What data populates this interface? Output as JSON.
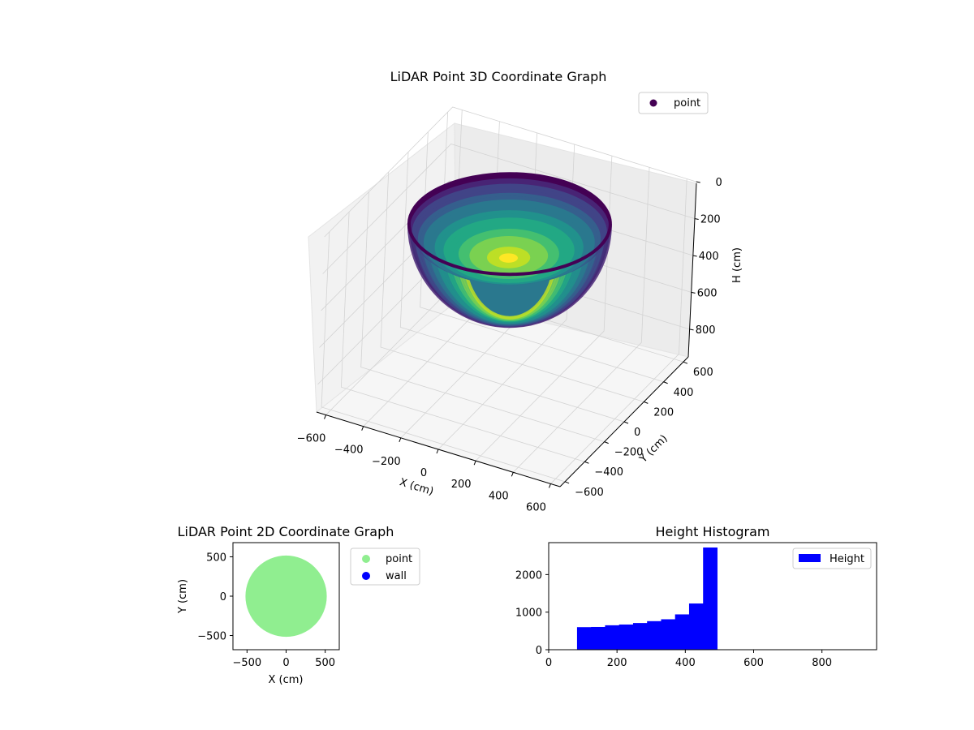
{
  "chart_data": [
    {
      "type": "scatter",
      "projection": "3d",
      "title": "LiDAR Point 3D Coordinate Graph",
      "xlabel": "X (cm)",
      "ylabel": "Y (cm)",
      "zlabel": "H (cm)",
      "xticks": [
        -600,
        -400,
        -200,
        0,
        200,
        400,
        600
      ],
      "yticks": [
        -600,
        -400,
        -200,
        0,
        200,
        400,
        600
      ],
      "zticks": [
        0,
        200,
        400,
        600,
        800
      ],
      "xlim": [
        -650,
        650
      ],
      "ylim": [
        -650,
        650
      ],
      "zlim": [
        950,
        0
      ],
      "z_axis_inverted": true,
      "grid": true,
      "colormap": "viridis",
      "legend": {
        "entries": [
          "point"
        ],
        "placement": "top-right"
      },
      "series": [
        {
          "name": "point",
          "shape": "hemispherical bowl",
          "center": [
            0,
            0
          ],
          "rim_radius": 520,
          "rim_height": 80,
          "bottom_height": 490
        }
      ]
    },
    {
      "type": "scatter",
      "title": "LiDAR Point 2D Coordinate Graph",
      "xlabel": "X (cm)",
      "ylabel": "Y (cm)",
      "xticks": [
        -500,
        0,
        500
      ],
      "yticks": [
        500,
        0,
        -500
      ],
      "xlim": [
        -680,
        680
      ],
      "ylim": [
        -680,
        680
      ],
      "grid": false,
      "legend": {
        "entries": [
          "point",
          "wall"
        ],
        "placement": "outside-right"
      },
      "series": [
        {
          "name": "point",
          "color": "#90ee90",
          "shape": "filled disk",
          "center": [
            0,
            0
          ],
          "radius": 520
        },
        {
          "name": "wall",
          "color": "#0000ff",
          "points": []
        }
      ]
    },
    {
      "type": "bar",
      "subtype": "histogram",
      "title": "Height Histogram",
      "xticks": [
        0,
        200,
        400,
        600,
        800
      ],
      "yticks": [
        0,
        1000,
        2000
      ],
      "xlim": [
        0,
        960
      ],
      "ylim": [
        0,
        2850
      ],
      "grid": false,
      "legend": {
        "entries": [
          "Height"
        ],
        "placement": "top-right"
      },
      "series": [
        {
          "name": "Height",
          "color": "#0000ff",
          "bin_edges": [
            83,
            124,
            165,
            206,
            247,
            288,
            329,
            370,
            411,
            452,
            493
          ],
          "values": [
            600,
            605,
            650,
            670,
            710,
            760,
            810,
            940,
            1230,
            2720
          ]
        }
      ]
    }
  ]
}
